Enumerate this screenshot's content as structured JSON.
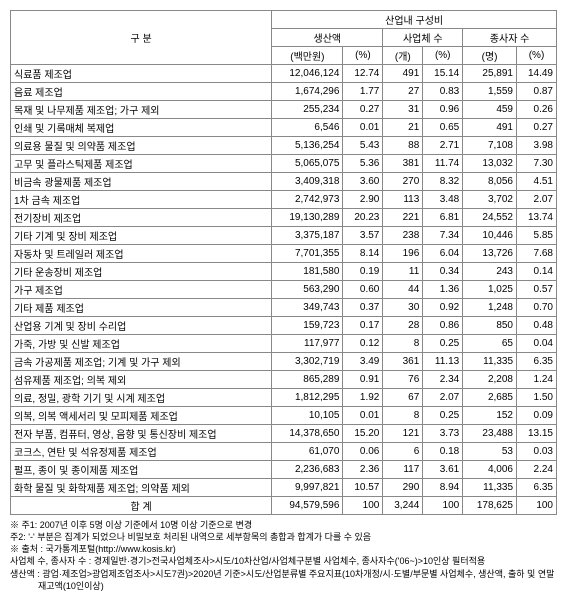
{
  "header": {
    "col_category": "구 분",
    "group_top": "산업내 구성비",
    "group_prod": "생산액",
    "group_biz": "사업체 수",
    "group_emp": "종사자 수",
    "unit_value": "(백만원)",
    "unit_pct": "(%)",
    "unit_count": "(개)",
    "unit_persons": "(명)"
  },
  "rows": [
    {
      "label": "식료품 제조업",
      "v1": "12,046,124",
      "p1": "12.74",
      "v2": "491",
      "p2": "15.14",
      "v3": "25,891",
      "p3": "14.49"
    },
    {
      "label": "음료 제조업",
      "v1": "1,674,296",
      "p1": "1.77",
      "v2": "27",
      "p2": "0.83",
      "v3": "1,559",
      "p3": "0.87"
    },
    {
      "label": "목재 및 나무제품 제조업; 가구 제외",
      "v1": "255,234",
      "p1": "0.27",
      "v2": "31",
      "p2": "0.96",
      "v3": "459",
      "p3": "0.26"
    },
    {
      "label": "인쇄 및 기록매체 복제업",
      "v1": "6,546",
      "p1": "0.01",
      "v2": "21",
      "p2": "0.65",
      "v3": "491",
      "p3": "0.27"
    },
    {
      "label": "의료용 물질 및 의약품 제조업",
      "v1": "5,136,254",
      "p1": "5.43",
      "v2": "88",
      "p2": "2.71",
      "v3": "7,108",
      "p3": "3.98"
    },
    {
      "label": "고무 및 플라스틱제품 제조업",
      "v1": "5,065,075",
      "p1": "5.36",
      "v2": "381",
      "p2": "11.74",
      "v3": "13,032",
      "p3": "7.30"
    },
    {
      "label": "비금속 광물제품 제조업",
      "v1": "3,409,318",
      "p1": "3.60",
      "v2": "270",
      "p2": "8.32",
      "v3": "8,056",
      "p3": "4.51"
    },
    {
      "label": "1차 금속 제조업",
      "v1": "2,742,973",
      "p1": "2.90",
      "v2": "113",
      "p2": "3.48",
      "v3": "3,702",
      "p3": "2.07"
    },
    {
      "label": "전기장비 제조업",
      "v1": "19,130,289",
      "p1": "20.23",
      "v2": "221",
      "p2": "6.81",
      "v3": "24,552",
      "p3": "13.74"
    },
    {
      "label": "기타 기계 및 장비 제조업",
      "v1": "3,375,187",
      "p1": "3.57",
      "v2": "238",
      "p2": "7.34",
      "v3": "10,446",
      "p3": "5.85"
    },
    {
      "label": "자동차 및 트레일러 제조업",
      "v1": "7,701,355",
      "p1": "8.14",
      "v2": "196",
      "p2": "6.04",
      "v3": "13,726",
      "p3": "7.68"
    },
    {
      "label": "기타 운송장비 제조업",
      "v1": "181,580",
      "p1": "0.19",
      "v2": "11",
      "p2": "0.34",
      "v3": "243",
      "p3": "0.14"
    },
    {
      "label": "가구 제조업",
      "v1": "563,290",
      "p1": "0.60",
      "v2": "44",
      "p2": "1.36",
      "v3": "1,025",
      "p3": "0.57"
    },
    {
      "label": "기타 제품 제조업",
      "v1": "349,743",
      "p1": "0.37",
      "v2": "30",
      "p2": "0.92",
      "v3": "1,248",
      "p3": "0.70"
    },
    {
      "label": "산업용 기계 및 장비 수리업",
      "v1": "159,723",
      "p1": "0.17",
      "v2": "28",
      "p2": "0.86",
      "v3": "850",
      "p3": "0.48"
    },
    {
      "label": "가죽, 가방 및 신발 제조업",
      "v1": "117,977",
      "p1": "0.12",
      "v2": "8",
      "p2": "0.25",
      "v3": "65",
      "p3": "0.04"
    },
    {
      "label": "금속 가공제품 제조업; 기계 및 가구 제외",
      "v1": "3,302,719",
      "p1": "3.49",
      "v2": "361",
      "p2": "11.13",
      "v3": "11,335",
      "p3": "6.35"
    },
    {
      "label": "섬유제품 제조업; 의복 제외",
      "v1": "865,289",
      "p1": "0.91",
      "v2": "76",
      "p2": "2.34",
      "v3": "2,208",
      "p3": "1.24"
    },
    {
      "label": "의료, 정밀, 광학 기기 및 시계 제조업",
      "v1": "1,812,295",
      "p1": "1.92",
      "v2": "67",
      "p2": "2.07",
      "v3": "2,685",
      "p3": "1.50"
    },
    {
      "label": "의복, 의복 액세서리 및 모피제품 제조업",
      "v1": "10,105",
      "p1": "0.01",
      "v2": "8",
      "p2": "0.25",
      "v3": "152",
      "p3": "0.09"
    },
    {
      "label": "전자 부품, 컴퓨터, 영상, 음향 및 통신장비 제조업",
      "v1": "14,378,650",
      "p1": "15.20",
      "v2": "121",
      "p2": "3.73",
      "v3": "23,488",
      "p3": "13.15"
    },
    {
      "label": "코크스, 연탄 및 석유정제품 제조업",
      "v1": "61,070",
      "p1": "0.06",
      "v2": "6",
      "p2": "0.18",
      "v3": "53",
      "p3": "0.03"
    },
    {
      "label": "펄프, 종이 및 종이제품 제조업",
      "v1": "2,236,683",
      "p1": "2.36",
      "v2": "117",
      "p2": "3.61",
      "v3": "4,006",
      "p3": "2.24"
    },
    {
      "label": "화학 물질 및 화학제품 제조업; 의약품 제외",
      "v1": "9,997,821",
      "p1": "10.57",
      "v2": "290",
      "p2": "8.94",
      "v3": "11,335",
      "p3": "6.35"
    }
  ],
  "total": {
    "label": "합 계",
    "v1": "94,579,596",
    "p1": "100",
    "v2": "3,244",
    "p2": "100",
    "v3": "178,625",
    "p3": "100"
  },
  "footnotes": {
    "f1": "※ 주1: 2007년 이후 5명 이상 기준에서 10명 이상 기준으로 변경",
    "f2": "주2: '-' 부분은 집계가 되었으나 비밀보호 처리된 내역으로 세부항목의 총합과 합계가 다를 수 있음",
    "f3": "※ 출처 : 국가통계포털(http://www.kosis.kr)",
    "f4": "사업체 수, 종사자 수 : 경제일반·경기>전국사업체조사>시도/10차산업/사업체구분별 사업체수, 종사자수('06~)>10인상 필터적용",
    "f5": "생산액 : 광업·제조업>광업제조업조사>시도7권)>2020년 기준>시도/산업분류별 주요지표(10차개정/시·도별/부문별 사업체수, 생산액, 출하 및 연말 재고액(10인이상)"
  }
}
